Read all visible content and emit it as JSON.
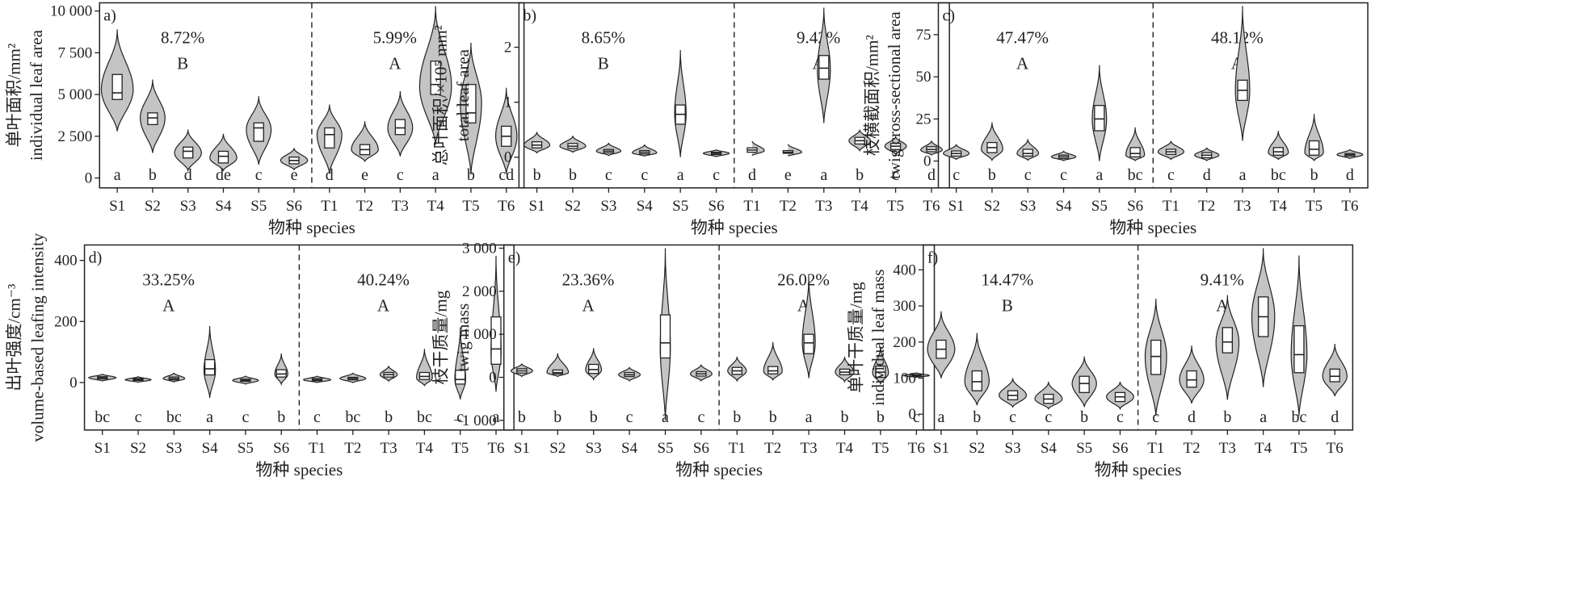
{
  "x_label": "物种 species",
  "chart_data": [
    {
      "type": "violin",
      "panel": "a)",
      "ylabel_cn": "单叶面积/mm²",
      "ylabel_en": "individual leaf area",
      "ylim": [
        -400,
        10300
      ],
      "yticks": [
        {
          "v": 0,
          "t": "0"
        },
        {
          "v": 2500,
          "t": "2 500"
        },
        {
          "v": 5000,
          "t": "5 000"
        },
        {
          "v": 7500,
          "t": "7 500"
        },
        {
          "v": 10000,
          "t": "10 000"
        }
      ],
      "categories": [
        "S1",
        "S2",
        "S3",
        "S4",
        "S5",
        "S6",
        "T1",
        "T2",
        "T3",
        "T4",
        "T5",
        "T6"
      ],
      "groups": [
        {
          "pct": "8.72%",
          "letter": "B"
        },
        {
          "pct": "5.99%",
          "letter": "A"
        }
      ],
      "sig": [
        "a",
        "b",
        "d",
        "de",
        "c",
        "e",
        "d",
        "e",
        "c",
        "a",
        "b",
        "cd"
      ],
      "violins": [
        {
          "min": 2800,
          "max": 8900,
          "q1": 4700,
          "median": 5100,
          "q3": 6200,
          "mode": 5300,
          "w": 0.45
        },
        {
          "min": 1500,
          "max": 5900,
          "q1": 3200,
          "median": 3600,
          "q3": 3900,
          "mode": 3600,
          "w": 0.35
        },
        {
          "min": 450,
          "max": 2900,
          "q1": 1200,
          "median": 1600,
          "q3": 1850,
          "mode": 1500,
          "w": 0.38
        },
        {
          "min": 450,
          "max": 2650,
          "q1": 900,
          "median": 1300,
          "q3": 1600,
          "mode": 1200,
          "w": 0.38
        },
        {
          "min": 800,
          "max": 4900,
          "q1": 2200,
          "median": 3000,
          "q3": 3300,
          "mode": 2900,
          "w": 0.35
        },
        {
          "min": 500,
          "max": 1800,
          "q1": 850,
          "median": 1050,
          "q3": 1250,
          "mode": 1050,
          "w": 0.38
        },
        {
          "min": 250,
          "max": 4400,
          "q1": 1800,
          "median": 2600,
          "q3": 3000,
          "mode": 2600,
          "w": 0.35
        },
        {
          "min": 1000,
          "max": 3400,
          "q1": 1400,
          "median": 1700,
          "q3": 2000,
          "mode": 1700,
          "w": 0.38
        },
        {
          "min": 1300,
          "max": 5200,
          "q1": 2600,
          "median": 3000,
          "q3": 3500,
          "mode": 3000,
          "w": 0.35
        },
        {
          "min": 2000,
          "max": 10300,
          "q1": 5000,
          "median": 5600,
          "q3": 7000,
          "mode": 5500,
          "w": 0.45
        },
        {
          "min": 200,
          "max": 8100,
          "q1": 3300,
          "median": 3900,
          "q3": 5600,
          "mode": 4500,
          "w": 0.3
        },
        {
          "min": 250,
          "max": 5400,
          "q1": 1900,
          "median": 2500,
          "q3": 3100,
          "mode": 2500,
          "w": 0.3
        }
      ]
    },
    {
      "type": "violin",
      "panel": "b)",
      "ylabel_cn": "总叶面积/×10⁵ mm²",
      "ylabel_en": "total leaf area",
      "ylim": [
        -0.5,
        2.75
      ],
      "yticks": [
        {
          "v": 0,
          "t": "0"
        },
        {
          "v": 1,
          "t": "1"
        },
        {
          "v": 2,
          "t": "2"
        }
      ],
      "categories": [
        "S1",
        "S2",
        "S3",
        "S4",
        "S5",
        "S6",
        "T1",
        "T2",
        "T3",
        "T4",
        "T5",
        "T6"
      ],
      "groups": [
        {
          "pct": "8.65%",
          "letter": "B"
        },
        {
          "pct": "9.42%",
          "letter": "A"
        }
      ],
      "sig": [
        "b",
        "b",
        "c",
        "c",
        "a",
        "c",
        "d",
        "e",
        "a",
        "b",
        "c",
        "d"
      ],
      "violins": [
        {
          "min": 0.08,
          "max": 0.46,
          "q1": 0.17,
          "median": 0.22,
          "q3": 0.28,
          "mode": 0.22,
          "w": 0.36
        },
        {
          "min": 0.09,
          "max": 0.39,
          "q1": 0.16,
          "median": 0.2,
          "q3": 0.25,
          "mode": 0.2,
          "w": 0.36
        },
        {
          "min": 0.03,
          "max": 0.26,
          "q1": 0.08,
          "median": 0.11,
          "q3": 0.14,
          "mode": 0.11,
          "w": 0.34
        },
        {
          "min": 0.02,
          "max": 0.23,
          "q1": 0.06,
          "median": 0.09,
          "q3": 0.12,
          "mode": 0.08,
          "w": 0.34
        },
        {
          "min": 0.0,
          "max": 1.95,
          "q1": 0.6,
          "median": 0.78,
          "q3": 0.95,
          "mode": 0.8,
          "w": 0.16
        },
        {
          "min": 0.01,
          "max": 0.14,
          "q1": 0.05,
          "median": 0.07,
          "q3": 0.09,
          "mode": 0.07,
          "w": 0.36
        },
        {
          "min": 0.03,
          "max": 0.3,
          "q1": 0.09,
          "median": 0.13,
          "q3": 0.17,
          "mode": 0.12,
          "w": 0.34
        },
        {
          "min": 0.02,
          "max": 0.24,
          "q1": 0.07,
          "median": 0.09,
          "q3": 0.12,
          "mode": 0.09,
          "w": 0.38
        },
        {
          "min": 0.62,
          "max": 2.72,
          "q1": 1.42,
          "median": 1.62,
          "q3": 1.85,
          "mode": 1.6,
          "w": 0.18
        },
        {
          "min": 0.12,
          "max": 0.5,
          "q1": 0.24,
          "median": 0.3,
          "q3": 0.36,
          "mode": 0.3,
          "w": 0.3
        },
        {
          "min": 0.05,
          "max": 0.38,
          "q1": 0.14,
          "median": 0.2,
          "q3": 0.25,
          "mode": 0.2,
          "w": 0.3
        },
        {
          "min": 0.04,
          "max": 0.3,
          "q1": 0.1,
          "median": 0.14,
          "q3": 0.19,
          "mode": 0.13,
          "w": 0.3
        }
      ]
    },
    {
      "type": "violin",
      "panel": "c)",
      "ylabel_cn": "枝横截面积/mm²",
      "ylabel_en": "twig cross-sectional area",
      "ylim": [
        -14,
        92
      ],
      "yticks": [
        {
          "v": 0,
          "t": "0"
        },
        {
          "v": 25,
          "t": "25"
        },
        {
          "v": 50,
          "t": "50"
        },
        {
          "v": 75,
          "t": "75"
        }
      ],
      "categories": [
        "S1",
        "S2",
        "S3",
        "S4",
        "S5",
        "S6",
        "T1",
        "T2",
        "T3",
        "T4",
        "T5",
        "T6"
      ],
      "groups": [
        {
          "pct": "47.47%",
          "letter": "A"
        },
        {
          "pct": "48.12%",
          "letter": "A"
        }
      ],
      "sig": [
        "c",
        "b",
        "c",
        "c",
        "a",
        "bc",
        "c",
        "d",
        "a",
        "bc",
        "b",
        "d"
      ],
      "violins": [
        {
          "min": 1,
          "max": 10,
          "q1": 3,
          "median": 4.5,
          "q3": 6,
          "mode": 4.5,
          "w": 0.36
        },
        {
          "min": 0.5,
          "max": 23,
          "q1": 5,
          "median": 8,
          "q3": 11,
          "mode": 7,
          "w": 0.3
        },
        {
          "min": 0.5,
          "max": 13,
          "q1": 3,
          "median": 4.5,
          "q3": 7,
          "mode": 4.5,
          "w": 0.3
        },
        {
          "min": 0.3,
          "max": 6,
          "q1": 1.5,
          "median": 2.5,
          "q3": 3.5,
          "mode": 2.5,
          "w": 0.34
        },
        {
          "min": 0,
          "max": 57,
          "q1": 18,
          "median": 25,
          "q3": 33,
          "mode": 25,
          "w": 0.2
        },
        {
          "min": 0.3,
          "max": 20,
          "q1": 2.5,
          "median": 4.5,
          "q3": 8,
          "mode": 3.5,
          "w": 0.26
        },
        {
          "min": 1,
          "max": 12,
          "q1": 4,
          "median": 5.5,
          "q3": 7,
          "mode": 5.5,
          "w": 0.36
        },
        {
          "min": 0.3,
          "max": 8,
          "q1": 2,
          "median": 3.5,
          "q3": 5,
          "mode": 3.5,
          "w": 0.34
        },
        {
          "min": 12,
          "max": 92,
          "q1": 36,
          "median": 42,
          "q3": 48,
          "mode": 42,
          "w": 0.2
        },
        {
          "min": 1,
          "max": 18,
          "q1": 3.5,
          "median": 5.5,
          "q3": 8,
          "mode": 5,
          "w": 0.28
        },
        {
          "min": 0.3,
          "max": 28,
          "q1": 3.5,
          "median": 7,
          "q3": 12,
          "mode": 5,
          "w": 0.26
        },
        {
          "min": 1.5,
          "max": 7,
          "q1": 3,
          "median": 3.8,
          "q3": 4.5,
          "mode": 3.8,
          "w": 0.36
        }
      ]
    },
    {
      "type": "violin",
      "panel": "d)",
      "ylabel_cn": "出叶强度/cm⁻³",
      "ylabel_en": "volume-based leafing intensity",
      "ylim": [
        -145,
        440
      ],
      "yticks": [
        {
          "v": 0,
          "t": "0"
        },
        {
          "v": 200,
          "t": "200"
        },
        {
          "v": 400,
          "t": "400"
        }
      ],
      "categories": [
        "S1",
        "S2",
        "S3",
        "S4",
        "S5",
        "S6",
        "T1",
        "T2",
        "T3",
        "T4",
        "T5",
        "T6"
      ],
      "groups": [
        {
          "pct": "33.25%",
          "letter": "A"
        },
        {
          "pct": "40.24%",
          "letter": "A"
        }
      ],
      "sig": [
        "bc",
        "c",
        "bc",
        "a",
        "c",
        "b",
        "c",
        "bc",
        "b",
        "bc",
        "c",
        "a"
      ],
      "violins": [
        {
          "min": 5,
          "max": 28,
          "q1": 12,
          "median": 16,
          "q3": 19,
          "mode": 16,
          "w": 0.38
        },
        {
          "min": 1,
          "max": 20,
          "q1": 7,
          "median": 10,
          "q3": 13,
          "mode": 9,
          "w": 0.36
        },
        {
          "min": 2,
          "max": 32,
          "q1": 9,
          "median": 13,
          "q3": 18,
          "mode": 13,
          "w": 0.3
        },
        {
          "min": -50,
          "max": 185,
          "q1": 25,
          "median": 45,
          "q3": 75,
          "mode": 40,
          "w": 0.16
        },
        {
          "min": -5,
          "max": 22,
          "q1": 4,
          "median": 7,
          "q3": 11,
          "mode": 7,
          "w": 0.36
        },
        {
          "min": -5,
          "max": 95,
          "q1": 18,
          "median": 28,
          "q3": 42,
          "mode": 28,
          "w": 0.18
        },
        {
          "min": 0,
          "max": 22,
          "q1": 6,
          "median": 9,
          "q3": 13,
          "mode": 9,
          "w": 0.38
        },
        {
          "min": 0,
          "max": 32,
          "q1": 9,
          "median": 13,
          "q3": 17,
          "mode": 13,
          "w": 0.36
        },
        {
          "min": 5,
          "max": 55,
          "q1": 18,
          "median": 26,
          "q3": 33,
          "mode": 26,
          "w": 0.24
        },
        {
          "min": -10,
          "max": 110,
          "q1": 10,
          "median": 20,
          "q3": 33,
          "mode": 15,
          "w": 0.22
        },
        {
          "min": -55,
          "max": 180,
          "q1": -5,
          "median": 10,
          "q3": 40,
          "mode": 10,
          "w": 0.15
        },
        {
          "min": -30,
          "max": 415,
          "q1": 60,
          "median": 110,
          "q3": 215,
          "mode": 100,
          "w": 0.14
        }
      ]
    },
    {
      "type": "violin",
      "panel": "e)",
      "ylabel_cn": "枝干质量/mg",
      "ylabel_en": "twig mass",
      "ylim": [
        -1150,
        3000
      ],
      "yticks": [
        {
          "v": -1000,
          "t": "−1 000"
        },
        {
          "v": 0,
          "t": "0"
        },
        {
          "v": 1000,
          "t": "1 000"
        },
        {
          "v": 2000,
          "t": "2 000"
        },
        {
          "v": 3000,
          "t": "3 000"
        }
      ],
      "categories": [
        "S1",
        "S2",
        "S3",
        "S4",
        "S5",
        "S6",
        "T1",
        "T2",
        "T3",
        "T4",
        "T5",
        "T6"
      ],
      "groups": [
        {
          "pct": "23.36%",
          "letter": "A"
        },
        {
          "pct": "26.02%",
          "letter": "A"
        }
      ],
      "sig": [
        "b",
        "b",
        "b",
        "c",
        "a",
        "c",
        "b",
        "b",
        "a",
        "b",
        "b",
        "c"
      ],
      "violins": [
        {
          "min": 20,
          "max": 320,
          "q1": 100,
          "median": 150,
          "q3": 200,
          "mode": 150,
          "w": 0.3
        },
        {
          "min": 20,
          "max": 560,
          "q1": 80,
          "median": 110,
          "q3": 170,
          "mode": 110,
          "w": 0.3
        },
        {
          "min": -50,
          "max": 680,
          "q1": 90,
          "median": 180,
          "q3": 300,
          "mode": 170,
          "w": 0.22
        },
        {
          "min": -80,
          "max": 240,
          "q1": 20,
          "median": 60,
          "q3": 110,
          "mode": 60,
          "w": 0.3
        },
        {
          "min": -1000,
          "max": 3000,
          "q1": 450,
          "median": 800,
          "q3": 1450,
          "mode": 700,
          "w": 0.14
        },
        {
          "min": -80,
          "max": 300,
          "q1": 30,
          "median": 80,
          "q3": 130,
          "mode": 80,
          "w": 0.3
        },
        {
          "min": -80,
          "max": 480,
          "q1": 70,
          "median": 150,
          "q3": 230,
          "mode": 150,
          "w": 0.26
        },
        {
          "min": -60,
          "max": 820,
          "q1": 80,
          "median": 150,
          "q3": 250,
          "mode": 140,
          "w": 0.26
        },
        {
          "min": -20,
          "max": 2350,
          "q1": 550,
          "median": 800,
          "q3": 1000,
          "mode": 800,
          "w": 0.18
        },
        {
          "min": -100,
          "max": 480,
          "q1": 60,
          "median": 120,
          "q3": 190,
          "mode": 120,
          "w": 0.26
        },
        {
          "min": -150,
          "max": 720,
          "q1": 0,
          "median": 120,
          "q3": 260,
          "mode": 100,
          "w": 0.22
        },
        {
          "min": 0,
          "max": 110,
          "q1": 20,
          "median": 40,
          "q3": 60,
          "mode": 40,
          "w": 0.36
        }
      ]
    },
    {
      "type": "violin",
      "panel": "f)",
      "ylabel_cn": "单叶干质量/mg",
      "ylabel_en": "individual leaf mass",
      "ylim": [
        -35,
        460
      ],
      "yticks": [
        {
          "v": 0,
          "t": "0"
        },
        {
          "v": 100,
          "t": "100"
        },
        {
          "v": 200,
          "t": "200"
        },
        {
          "v": 300,
          "t": "300"
        },
        {
          "v": 400,
          "t": "400"
        }
      ],
      "categories": [
        "S1",
        "S2",
        "S3",
        "S4",
        "S5",
        "S6",
        "T1",
        "T2",
        "T3",
        "T4",
        "T5",
        "T6"
      ],
      "groups": [
        {
          "pct": "14.47%",
          "letter": "B"
        },
        {
          "pct": "9.41%",
          "letter": "A"
        }
      ],
      "sig": [
        "a",
        "b",
        "c",
        "c",
        "b",
        "c",
        "c",
        "d",
        "b",
        "a",
        "bc",
        "d"
      ],
      "violins": [
        {
          "min": 100,
          "max": 285,
          "q1": 155,
          "median": 180,
          "q3": 205,
          "mode": 180,
          "w": 0.38
        },
        {
          "min": 25,
          "max": 225,
          "q1": 65,
          "median": 90,
          "q3": 120,
          "mode": 90,
          "w": 0.34
        },
        {
          "min": 20,
          "max": 100,
          "q1": 40,
          "median": 52,
          "q3": 65,
          "mode": 52,
          "w": 0.38
        },
        {
          "min": 15,
          "max": 90,
          "q1": 30,
          "median": 42,
          "q3": 55,
          "mode": 42,
          "w": 0.38
        },
        {
          "min": 20,
          "max": 160,
          "q1": 60,
          "median": 85,
          "q3": 105,
          "mode": 85,
          "w": 0.34
        },
        {
          "min": 15,
          "max": 90,
          "q1": 35,
          "median": 48,
          "q3": 60,
          "mode": 48,
          "w": 0.38
        },
        {
          "min": -5,
          "max": 320,
          "q1": 110,
          "median": 160,
          "q3": 205,
          "mode": 160,
          "w": 0.3
        },
        {
          "min": 30,
          "max": 190,
          "q1": 75,
          "median": 95,
          "q3": 120,
          "mode": 95,
          "w": 0.34
        },
        {
          "min": 40,
          "max": 330,
          "q1": 170,
          "median": 200,
          "q3": 240,
          "mode": 200,
          "w": 0.32
        },
        {
          "min": 75,
          "max": 460,
          "q1": 215,
          "median": 270,
          "q3": 325,
          "mode": 270,
          "w": 0.32
        },
        {
          "min": -5,
          "max": 440,
          "q1": 115,
          "median": 165,
          "q3": 245,
          "mode": 165,
          "w": 0.22
        },
        {
          "min": 50,
          "max": 195,
          "q1": 90,
          "median": 105,
          "q3": 125,
          "mode": 105,
          "w": 0.34
        }
      ]
    }
  ]
}
